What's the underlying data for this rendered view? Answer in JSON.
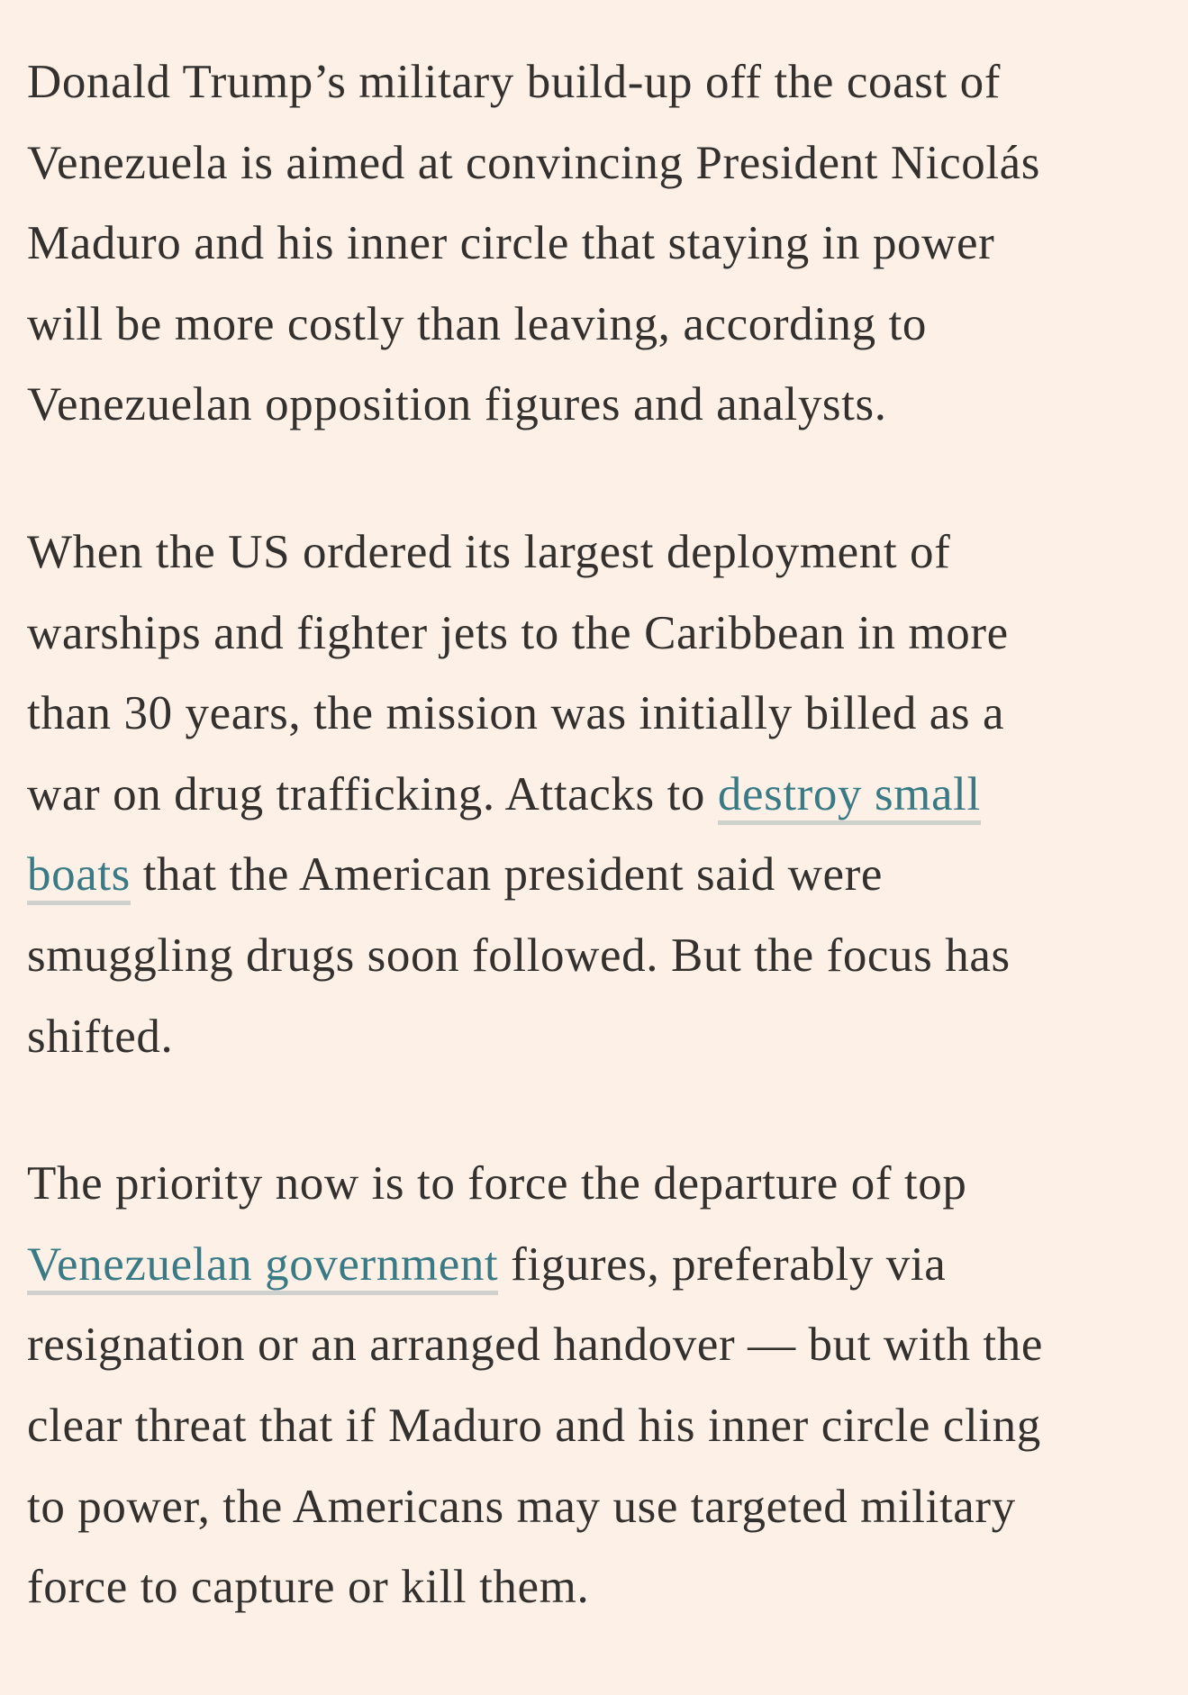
{
  "colors": {
    "background": "#fdf1e7",
    "text": "#33302e",
    "link": "#3a7a85",
    "link_underline": "#cfd1cc"
  },
  "paragraphs": [
    {
      "lines": [
        [
          {
            "t": "Donald Trump’s military build-up off the coast of"
          }
        ],
        [
          {
            "t": "Venezuela is aimed at convincing President Nicolás"
          }
        ],
        [
          {
            "t": "Maduro and his inner circle that staying in power"
          }
        ],
        [
          {
            "t": "will be more costly than leaving, according to"
          }
        ],
        [
          {
            "t": "Venezuelan opposition figures and analysts."
          }
        ]
      ]
    },
    {
      "lines": [
        [
          {
            "t": "When the US ordered its largest deployment of"
          }
        ],
        [
          {
            "t": "warships and fighter jets to the Caribbean in more"
          }
        ],
        [
          {
            "t": "than 30 years, the mission was initially billed as a"
          }
        ],
        [
          {
            "t": "war on drug trafficking. Attacks to "
          },
          {
            "t": "destroy small",
            "link": true
          }
        ],
        [
          {
            "t": "boats",
            "link": true
          },
          {
            "t": " that the American president said were"
          }
        ],
        [
          {
            "t": "smuggling drugs soon followed. But the focus has"
          }
        ],
        [
          {
            "t": "shifted."
          }
        ]
      ]
    },
    {
      "lines": [
        [
          {
            "t": "The priority now is to force the departure of top"
          }
        ],
        [
          {
            "t": "Venezuelan government",
            "link": true
          },
          {
            "t": " figures, preferably via"
          }
        ],
        [
          {
            "t": "resignation or an arranged handover — but with the"
          }
        ],
        [
          {
            "t": "clear threat that if Maduro and his inner circle cling"
          }
        ],
        [
          {
            "t": "to power, the Americans may use targeted military"
          }
        ],
        [
          {
            "t": "force to capture or kill them."
          }
        ]
      ]
    }
  ]
}
